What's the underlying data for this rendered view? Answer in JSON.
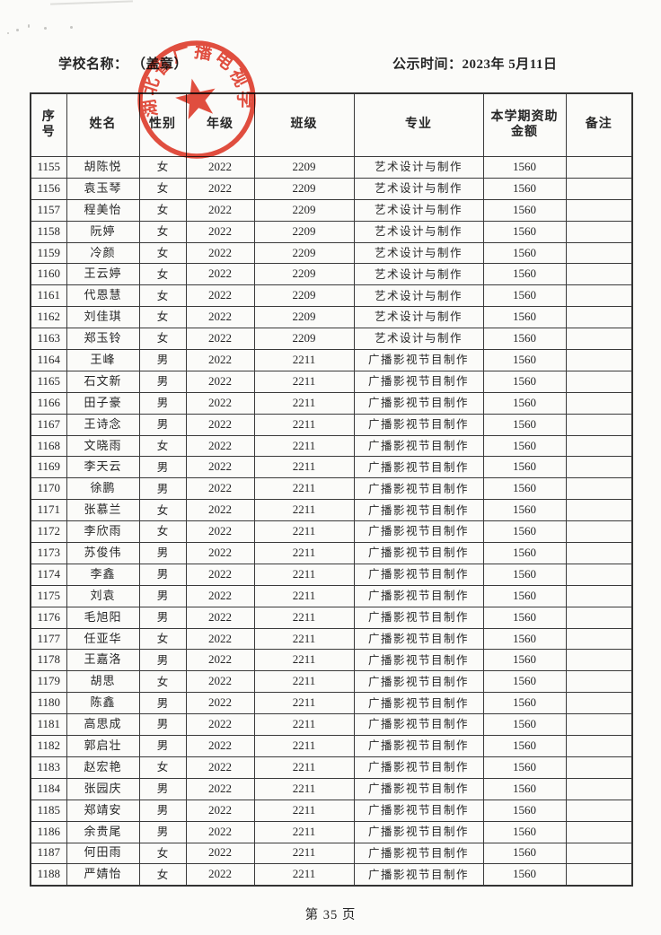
{
  "header": {
    "school_label": "学校名称：",
    "stamp_note": "（盖章）",
    "publish_label": "公示时间：",
    "publish_date": "2023年 5月11日"
  },
  "seal": {
    "text": "湖北省广播电视学校",
    "color": "#e2402f",
    "star_icon": "red-star"
  },
  "table": {
    "headers": [
      "序号",
      "姓名",
      "性别",
      "年级",
      "班级",
      "专业",
      "本学期资助金额",
      "备注"
    ],
    "rows": [
      [
        "1155",
        "胡陈悦",
        "女",
        "2022",
        "2209",
        "艺术设计与制作",
        "1560",
        ""
      ],
      [
        "1156",
        "袁玉琴",
        "女",
        "2022",
        "2209",
        "艺术设计与制作",
        "1560",
        ""
      ],
      [
        "1157",
        "程美怡",
        "女",
        "2022",
        "2209",
        "艺术设计与制作",
        "1560",
        ""
      ],
      [
        "1158",
        "阮婷",
        "女",
        "2022",
        "2209",
        "艺术设计与制作",
        "1560",
        ""
      ],
      [
        "1159",
        "冷颜",
        "女",
        "2022",
        "2209",
        "艺术设计与制作",
        "1560",
        ""
      ],
      [
        "1160",
        "王云婷",
        "女",
        "2022",
        "2209",
        "艺术设计与制作",
        "1560",
        ""
      ],
      [
        "1161",
        "代恩慧",
        "女",
        "2022",
        "2209",
        "艺术设计与制作",
        "1560",
        ""
      ],
      [
        "1162",
        "刘佳琪",
        "女",
        "2022",
        "2209",
        "艺术设计与制作",
        "1560",
        ""
      ],
      [
        "1163",
        "郑玉铃",
        "女",
        "2022",
        "2209",
        "艺术设计与制作",
        "1560",
        ""
      ],
      [
        "1164",
        "王峰",
        "男",
        "2022",
        "2211",
        "广播影视节目制作",
        "1560",
        ""
      ],
      [
        "1165",
        "石文新",
        "男",
        "2022",
        "2211",
        "广播影视节目制作",
        "1560",
        ""
      ],
      [
        "1166",
        "田子豪",
        "男",
        "2022",
        "2211",
        "广播影视节目制作",
        "1560",
        ""
      ],
      [
        "1167",
        "王诗念",
        "男",
        "2022",
        "2211",
        "广播影视节目制作",
        "1560",
        ""
      ],
      [
        "1168",
        "文晓雨",
        "女",
        "2022",
        "2211",
        "广播影视节目制作",
        "1560",
        ""
      ],
      [
        "1169",
        "李天云",
        "男",
        "2022",
        "2211",
        "广播影视节目制作",
        "1560",
        ""
      ],
      [
        "1170",
        "徐鹏",
        "男",
        "2022",
        "2211",
        "广播影视节目制作",
        "1560",
        ""
      ],
      [
        "1171",
        "张慕兰",
        "女",
        "2022",
        "2211",
        "广播影视节目制作",
        "1560",
        ""
      ],
      [
        "1172",
        "李欣雨",
        "女",
        "2022",
        "2211",
        "广播影视节目制作",
        "1560",
        ""
      ],
      [
        "1173",
        "苏俊伟",
        "男",
        "2022",
        "2211",
        "广播影视节目制作",
        "1560",
        ""
      ],
      [
        "1174",
        "李鑫",
        "男",
        "2022",
        "2211",
        "广播影视节目制作",
        "1560",
        ""
      ],
      [
        "1175",
        "刘袁",
        "男",
        "2022",
        "2211",
        "广播影视节目制作",
        "1560",
        ""
      ],
      [
        "1176",
        "毛旭阳",
        "男",
        "2022",
        "2211",
        "广播影视节目制作",
        "1560",
        ""
      ],
      [
        "1177",
        "任亚华",
        "女",
        "2022",
        "2211",
        "广播影视节目制作",
        "1560",
        ""
      ],
      [
        "1178",
        "王嘉洛",
        "男",
        "2022",
        "2211",
        "广播影视节目制作",
        "1560",
        ""
      ],
      [
        "1179",
        "胡思",
        "女",
        "2022",
        "2211",
        "广播影视节目制作",
        "1560",
        ""
      ],
      [
        "1180",
        "陈鑫",
        "男",
        "2022",
        "2211",
        "广播影视节目制作",
        "1560",
        ""
      ],
      [
        "1181",
        "高思成",
        "男",
        "2022",
        "2211",
        "广播影视节目制作",
        "1560",
        ""
      ],
      [
        "1182",
        "郭启壮",
        "男",
        "2022",
        "2211",
        "广播影视节目制作",
        "1560",
        ""
      ],
      [
        "1183",
        "赵宏艳",
        "女",
        "2022",
        "2211",
        "广播影视节目制作",
        "1560",
        ""
      ],
      [
        "1184",
        "张园庆",
        "男",
        "2022",
        "2211",
        "广播影视节目制作",
        "1560",
        ""
      ],
      [
        "1185",
        "郑靖安",
        "男",
        "2022",
        "2211",
        "广播影视节目制作",
        "1560",
        ""
      ],
      [
        "1186",
        "余贵尾",
        "男",
        "2022",
        "2211",
        "广播影视节目制作",
        "1560",
        ""
      ],
      [
        "1187",
        "何田雨",
        "女",
        "2022",
        "2211",
        "广播影视节目制作",
        "1560",
        ""
      ],
      [
        "1188",
        "严婧怡",
        "女",
        "2022",
        "2211",
        "广播影视节目制作",
        "1560",
        ""
      ]
    ]
  },
  "footer": {
    "page_label": "第 35 页"
  }
}
